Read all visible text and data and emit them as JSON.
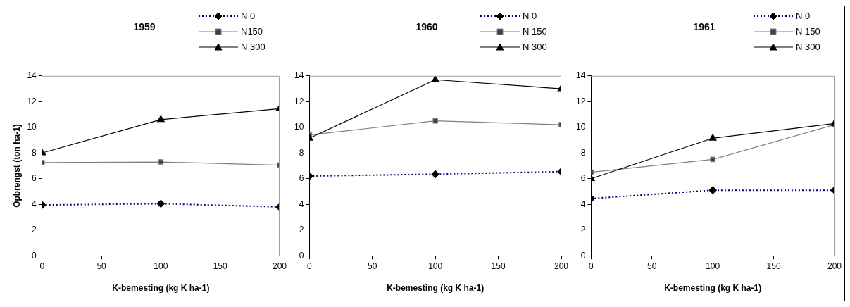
{
  "chart_data": [
    {
      "type": "line",
      "title": "1959",
      "xlabel": "K-bemesting (kg K ha-1)",
      "ylabel": "Opbrengst (ton ha-1)",
      "x": [
        0,
        100,
        200
      ],
      "xlim": [
        0,
        200
      ],
      "xticks": [
        0,
        50,
        100,
        150,
        200
      ],
      "ylim": [
        0,
        14
      ],
      "yticks": [
        0,
        2,
        4,
        6,
        8,
        10,
        12,
        14
      ],
      "grid": false,
      "legend": "top right",
      "series": [
        {
          "name": "N 0",
          "color": "#000080",
          "marker": "diamond",
          "line_style": "dotted",
          "values": [
            3.95,
            4.05,
            3.8
          ]
        },
        {
          "name": "N150",
          "color": "#808080",
          "marker": "square",
          "line_style": "solid",
          "values": [
            7.25,
            7.3,
            7.05
          ]
        },
        {
          "name": "N 300",
          "color": "#000000",
          "marker": "triangle",
          "line_style": "solid",
          "values": [
            8.0,
            10.6,
            11.45
          ]
        }
      ]
    },
    {
      "type": "line",
      "title": "1960",
      "xlabel": "K-bemesting (kg K ha-1)",
      "x": [
        0,
        100,
        200
      ],
      "xlim": [
        0,
        200
      ],
      "xticks": [
        0,
        50,
        100,
        150,
        200
      ],
      "ylim": [
        0,
        14
      ],
      "yticks": [
        0,
        2,
        4,
        6,
        8,
        10,
        12,
        14
      ],
      "grid": false,
      "legend": "top right",
      "series": [
        {
          "name": "N 0",
          "color": "#000080",
          "marker": "diamond",
          "line_style": "dotted",
          "values": [
            6.2,
            6.35,
            6.55
          ]
        },
        {
          "name": "N 150",
          "color": "#808080",
          "marker": "square",
          "line_style": "solid",
          "values": [
            9.4,
            10.5,
            10.2
          ]
        },
        {
          "name": "N 300",
          "color": "#000000",
          "marker": "triangle",
          "line_style": "solid",
          "values": [
            9.15,
            13.7,
            13.0
          ]
        }
      ]
    },
    {
      "type": "line",
      "title": "1961",
      "xlabel": "K-bemesting (kg K ha-1)",
      "x": [
        0,
        100,
        200
      ],
      "xlim": [
        0,
        200
      ],
      "xticks": [
        0,
        50,
        100,
        150,
        200
      ],
      "ylim": [
        0,
        14
      ],
      "yticks": [
        0,
        2,
        4,
        6,
        8,
        10,
        12,
        14
      ],
      "grid": false,
      "legend": "top right",
      "series": [
        {
          "name": "N 0",
          "color": "#000080",
          "marker": "diamond",
          "line_style": "dotted",
          "values": [
            4.45,
            5.1,
            5.1
          ]
        },
        {
          "name": "N 150",
          "color": "#808080",
          "marker": "square",
          "line_style": "solid",
          "values": [
            6.5,
            7.5,
            10.2
          ]
        },
        {
          "name": "N 300",
          "color": "#000000",
          "marker": "triangle",
          "line_style": "solid",
          "values": [
            6.0,
            9.15,
            10.3
          ]
        }
      ]
    }
  ]
}
